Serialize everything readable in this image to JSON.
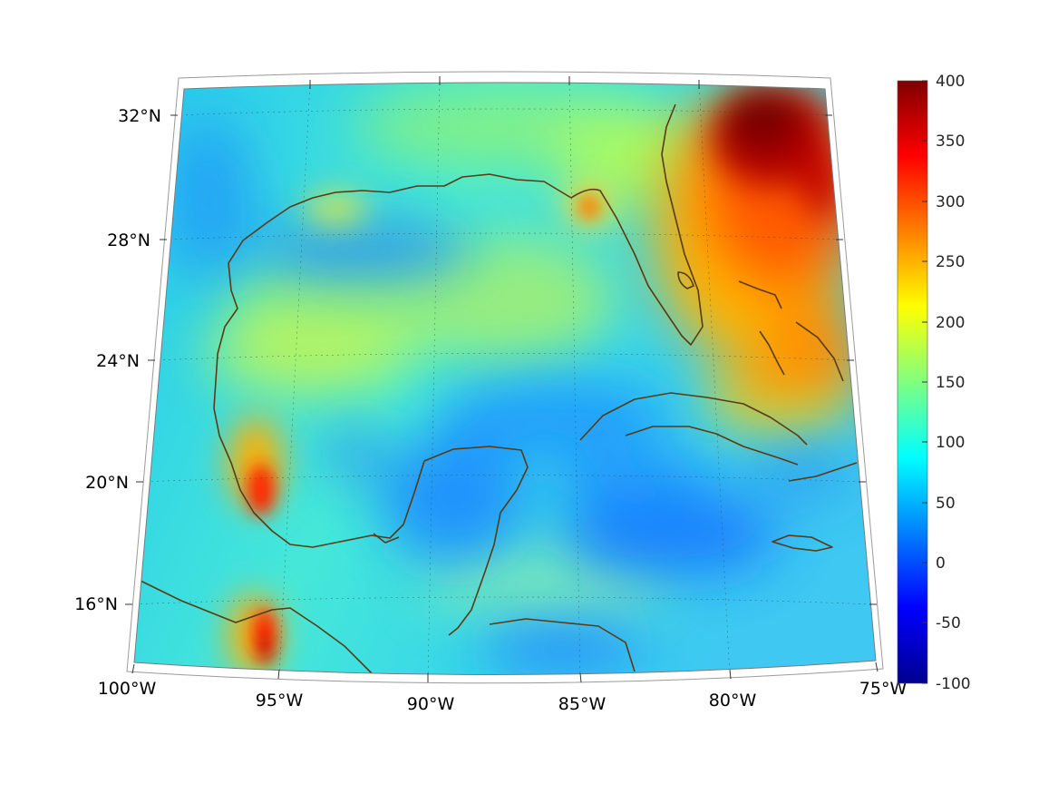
{
  "map": {
    "lon_ticks": [
      "100°W",
      "95°W",
      "90°W",
      "85°W",
      "80°W",
      "75°W"
    ],
    "lat_ticks": [
      "32°N",
      "28°N",
      "24°N",
      "20°N",
      "16°N"
    ]
  },
  "colorbar": {
    "ticks": [
      "400",
      "350",
      "300",
      "250",
      "200",
      "150",
      "100",
      "50",
      "0",
      "-50",
      "-100"
    ],
    "range": [
      -100,
      400
    ],
    "colormap": "jet"
  },
  "colors": {
    "coastline": "#5a3a14",
    "background": "#ffffff"
  }
}
